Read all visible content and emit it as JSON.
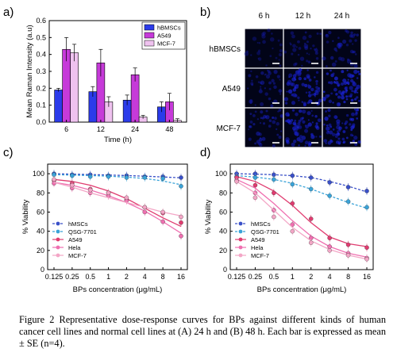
{
  "figure": {
    "labels": {
      "a": "a)",
      "b": "b)",
      "c": "c)",
      "d": "d)"
    },
    "caption": "Figure 2 Representative dose-response curves for BPs against different kinds of human cancer cell lines and normal cell lines at (A) 24 h and (B) 48 h. Each bar is expressed as mean ± SE (n=4).",
    "colors": {
      "hBMSCs": "#2b3bea",
      "A549": "#c63ad9",
      "MCF-7": "#efc2ef",
      "hMSCs": "#3a50c8",
      "QSG-7701": "#3aa3d8",
      "A549_line": "#e03c70",
      "Hela": "#ef6fb0",
      "MCF-7_line": "#f3a6c6"
    },
    "micrograph": {
      "col_labels": [
        "6 h",
        "12 h",
        "24 h"
      ],
      "row_labels": [
        "hBMSCs",
        "A549",
        "MCF-7"
      ],
      "intensity": [
        [
          0.1,
          0.2,
          0.25
        ],
        [
          0.25,
          0.55,
          0.6
        ],
        [
          0.3,
          0.5,
          0.55
        ]
      ]
    }
  },
  "chart_data": [
    {
      "type": "bar",
      "panel": "a",
      "title": "",
      "xlabel": "Time (h)",
      "ylabel": "Mean Raman Intensity (a.u)",
      "categories": [
        "6",
        "12",
        "24",
        "48"
      ],
      "ylim": [
        0,
        0.6
      ],
      "yticks": [
        "0.0",
        "0.1",
        "0.2",
        "0.3",
        "0.4",
        "0.5",
        "0.6"
      ],
      "legend_position": "top-right",
      "series": [
        {
          "name": "hBMSCs",
          "values": [
            0.19,
            0.18,
            0.13,
            0.09
          ],
          "errors": [
            0.01,
            0.03,
            0.03,
            0.03
          ]
        },
        {
          "name": "A549",
          "values": [
            0.43,
            0.35,
            0.28,
            0.12
          ],
          "errors": [
            0.07,
            0.08,
            0.04,
            0.05
          ]
        },
        {
          "name": "MCF-7",
          "values": [
            0.41,
            0.12,
            0.03,
            0.01
          ],
          "errors": [
            0.05,
            0.03,
            0.01,
            0.01
          ]
        }
      ]
    },
    {
      "type": "line",
      "panel": "c",
      "title": "",
      "xlabel": "BPs concentration (μg/mL)",
      "ylabel": "% Viability",
      "x_scale": "log2",
      "x": [
        0.125,
        0.25,
        0.5,
        1,
        2,
        4,
        8,
        16
      ],
      "xticks": [
        "0.125",
        "0.25",
        "0.5",
        "1",
        "2",
        "4",
        "8",
        "16"
      ],
      "ylim": [
        0,
        110
      ],
      "yticks": [
        "0",
        "20",
        "40",
        "60",
        "80",
        "100"
      ],
      "legend_position": "bottom-left",
      "series": [
        {
          "name": "hMSCs",
          "values": [
            100,
            99,
            99,
            98,
            98,
            97,
            97,
            96
          ],
          "fit": [
            100,
            99.6,
            99.2,
            98.7,
            98.1,
            97.4,
            96.6,
            95.8
          ]
        },
        {
          "name": "QSG-7701",
          "values": [
            99,
            98,
            97,
            97,
            96,
            96,
            95,
            87
          ],
          "fit": [
            99,
            98.6,
            98.1,
            97.4,
            96.4,
            95,
            92.5,
            88.5
          ]
        },
        {
          "name": "A549",
          "values": [
            93,
            90,
            84,
            80,
            73,
            65,
            59,
            49
          ],
          "fit": [
            94,
            92,
            88,
            82,
            74,
            64,
            54,
            45
          ]
        },
        {
          "name": "Hela",
          "values": [
            90,
            85,
            80,
            77,
            72,
            60,
            50,
            35
          ],
          "fit": [
            91,
            88,
            83,
            77,
            70,
            61,
            50,
            38
          ]
        },
        {
          "name": "MCF-7",
          "values": [
            94,
            88,
            83,
            80,
            75,
            65,
            60,
            55
          ],
          "fit": [
            91,
            86,
            80,
            75,
            70,
            65,
            60,
            56
          ]
        }
      ]
    },
    {
      "type": "line",
      "panel": "d",
      "title": "",
      "xlabel": "BPs concentration (μg/mL)",
      "ylabel": "% Viability",
      "x_scale": "log2",
      "x": [
        0.125,
        0.25,
        0.5,
        1,
        2,
        4,
        8,
        16
      ],
      "xticks": [
        "0.125",
        "0.25",
        "0.5",
        "1",
        "2",
        "4",
        "8",
        "16"
      ],
      "ylim": [
        0,
        110
      ],
      "yticks": [
        "0",
        "20",
        "40",
        "60",
        "80",
        "100"
      ],
      "legend_position": "bottom-left",
      "series": [
        {
          "name": "hMSCs",
          "values": [
            100,
            100,
            99,
            98,
            96,
            91,
            86,
            82
          ],
          "fit": [
            100,
            99.6,
            99,
            98,
            96,
            92,
            87,
            81
          ]
        },
        {
          "name": "QSG-7701",
          "values": [
            97,
            96,
            94,
            89,
            84,
            77,
            71,
            65
          ],
          "fit": [
            98,
            96.5,
            94,
            90,
            84,
            77,
            70,
            64
          ]
        },
        {
          "name": "A549",
          "values": [
            96,
            88,
            80,
            69,
            53,
            33,
            26,
            23
          ],
          "fit": [
            97,
            92,
            82,
            67,
            49,
            34,
            27,
            24
          ]
        },
        {
          "name": "Hela",
          "values": [
            93,
            80,
            62,
            47,
            33,
            24,
            17,
            12
          ],
          "fit": [
            94,
            85,
            69,
            51,
            35,
            24,
            17,
            13
          ]
        },
        {
          "name": "MCF-7",
          "values": [
            92,
            75,
            55,
            40,
            28,
            20,
            15,
            11
          ],
          "fit": [
            92,
            80,
            62,
            44,
            30,
            21,
            15,
            11
          ]
        }
      ]
    }
  ]
}
